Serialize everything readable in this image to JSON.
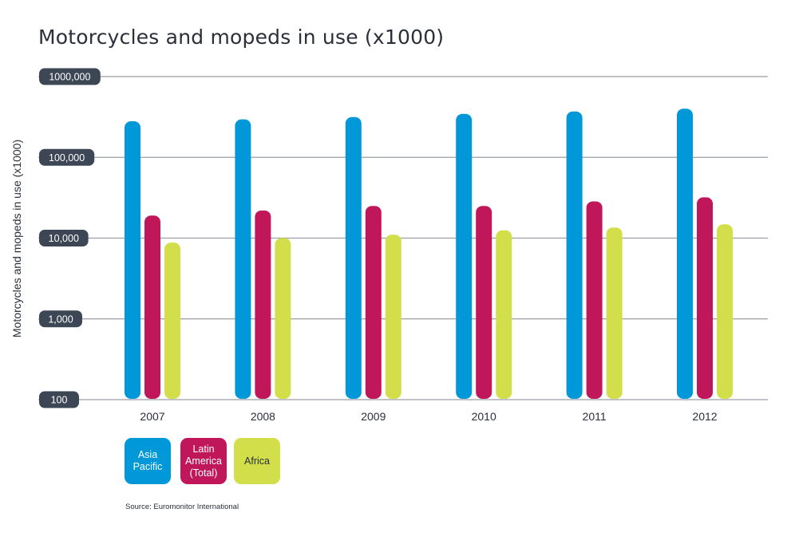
{
  "chart_data": {
    "type": "bar",
    "title": "Motorcycles and mopeds in use (x1000)",
    "ylabel": "Motorcycles and mopeds in use (x1000)",
    "xlabel": "",
    "yscale": "log",
    "ylim": [
      100,
      1000000
    ],
    "yticks": [
      100,
      1000,
      10000,
      100000,
      1000000
    ],
    "ytick_labels": [
      "100",
      "1,000",
      "10,000",
      "100,000",
      "1000,000"
    ],
    "grid": true,
    "legend_position": "bottom-left",
    "categories": [
      "2007",
      "2008",
      "2009",
      "2010",
      "2011",
      "2012"
    ],
    "series": [
      {
        "name": "Asia Pacific",
        "color": "#0098d8",
        "values": [
          280000,
          295000,
          315000,
          345000,
          370000,
          400000
        ]
      },
      {
        "name": "Latin America (Total)",
        "color": "#c0175a",
        "values": [
          19000,
          22000,
          25000,
          25000,
          28500,
          32000
        ]
      },
      {
        "name": "Africa",
        "color": "#d2df4a",
        "values": [
          8800,
          10000,
          11000,
          12500,
          13500,
          14800
        ]
      }
    ],
    "source": "Source: Euromonitor International"
  }
}
